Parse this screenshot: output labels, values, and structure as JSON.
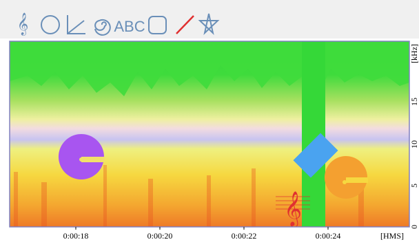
{
  "toolbar": {
    "text_tool": "ABC"
  },
  "spectrogram": {
    "x_ticks": [
      "0:00:18",
      "0:00:20",
      "0:00:22",
      "0:00:24"
    ],
    "x_unit": "[HMS]",
    "y_unit": "[kHz]",
    "y_ticks": [
      15,
      10,
      5,
      0
    ]
  }
}
